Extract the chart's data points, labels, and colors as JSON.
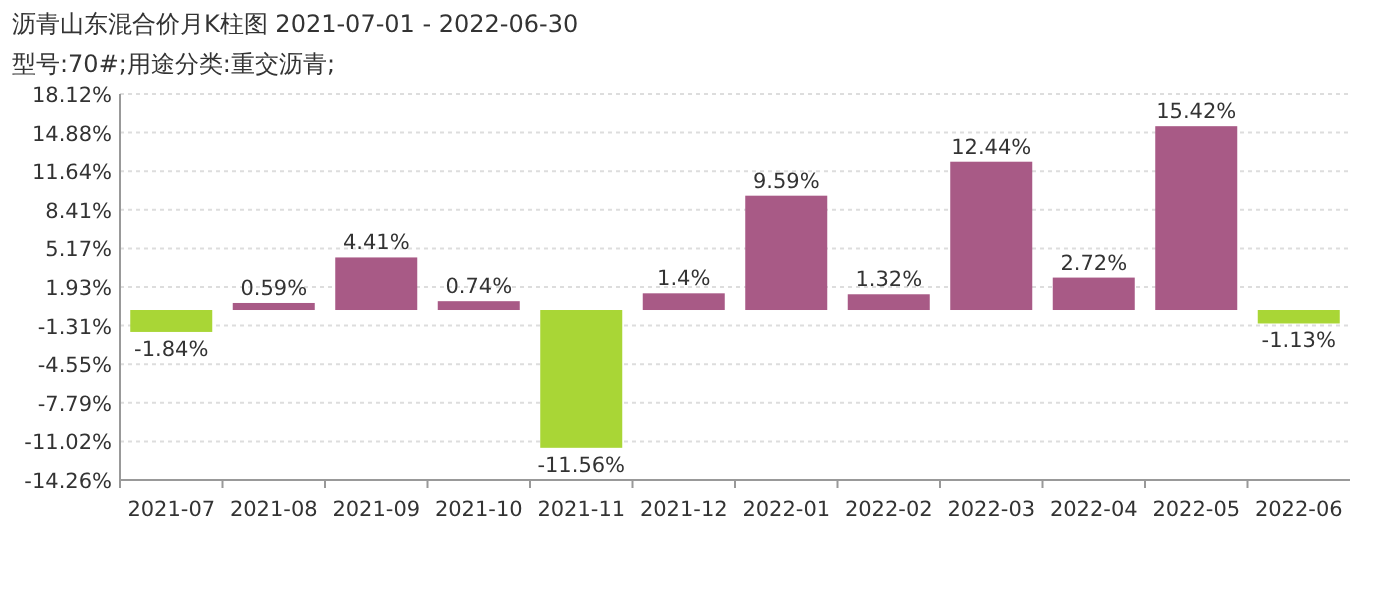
{
  "chart_data": {
    "type": "bar",
    "title": "沥青山东混合价月K柱图  2021-07-01 - 2022-06-30",
    "subtitle": "型号:70#;用途分类:重交沥青;",
    "categories": [
      "2021-07",
      "2021-08",
      "2021-09",
      "2021-10",
      "2021-11",
      "2021-12",
      "2022-01",
      "2022-02",
      "2022-03",
      "2022-04",
      "2022-05",
      "2022-06"
    ],
    "values": [
      -1.84,
      0.59,
      4.41,
      0.74,
      -11.56,
      1.4,
      9.59,
      1.32,
      12.44,
      2.72,
      15.42,
      -1.13
    ],
    "colors": [
      "#a9d636",
      "#a85a86",
      "#a85a86",
      "#a85a86",
      "#a9d636",
      "#a85a86",
      "#a85a86",
      "#a85a86",
      "#a85a86",
      "#a85a86",
      "#a85a86",
      "#a9d636"
    ],
    "value_labels": [
      "-1.84%",
      "0.59%",
      "4.41%",
      "0.74%",
      "-11.56%",
      "1.4%",
      "9.59%",
      "1.32%",
      "12.44%",
      "2.72%",
      "15.42%",
      "-1.13%"
    ],
    "ylim": [
      -14.26,
      18.12
    ],
    "yticks": [
      {
        "value": 18.12,
        "label": "18.12%"
      },
      {
        "value": 14.88,
        "label": "14.88%"
      },
      {
        "value": 11.64,
        "label": "11.64%"
      },
      {
        "value": 8.41,
        "label": "8.41%"
      },
      {
        "value": 5.17,
        "label": "5.17%"
      },
      {
        "value": 1.93,
        "label": "1.93%"
      },
      {
        "value": -1.31,
        "label": "-1.31%"
      },
      {
        "value": -4.55,
        "label": "-4.55%"
      },
      {
        "value": -7.79,
        "label": "-7.79%"
      },
      {
        "value": -11.02,
        "label": "-11.02%"
      },
      {
        "value": -14.26,
        "label": "-14.26%"
      }
    ],
    "grid": "y"
  }
}
